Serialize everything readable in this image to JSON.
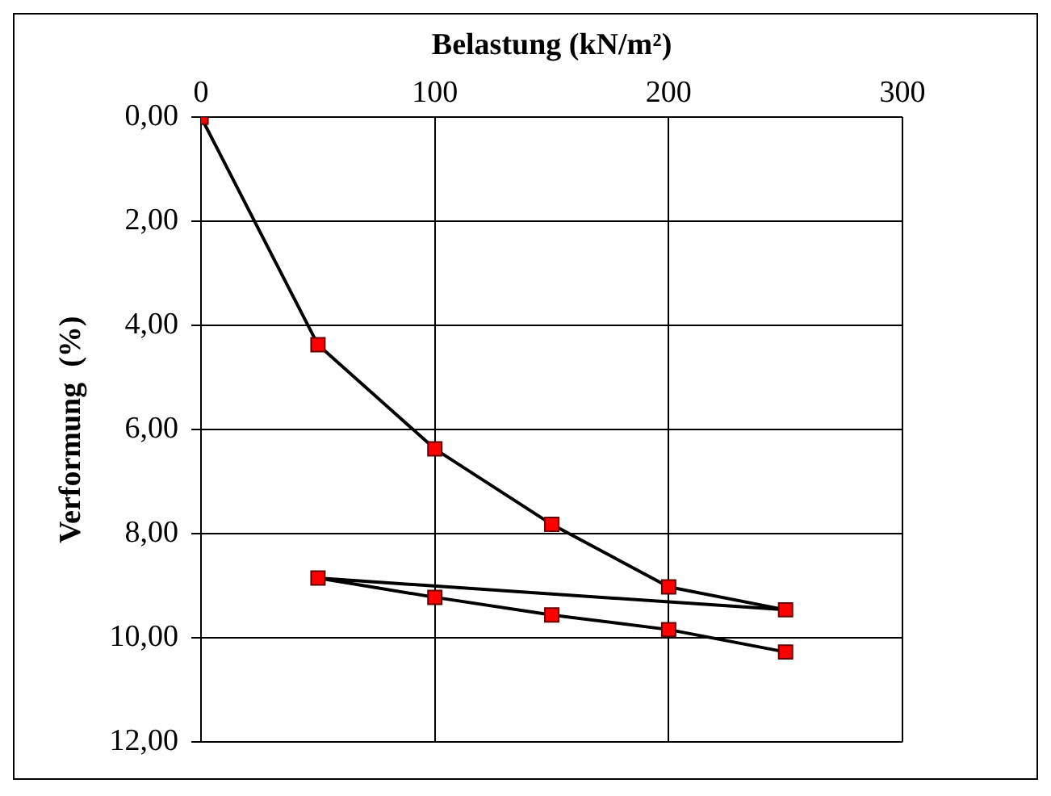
{
  "chart_data": {
    "type": "line",
    "xlabel": "Belastung (kN/m²)",
    "ylabel": "Verformung  (%)",
    "x": [
      0,
      50,
      100,
      150,
      200,
      250,
      50,
      100,
      150,
      200,
      250
    ],
    "series": [
      {
        "color": "#ff0000",
        "values": [
          0,
          4.37,
          6.37,
          7.82,
          9.02,
          9.46,
          8.85,
          9.22,
          9.56,
          9.84,
          10.27
        ]
      }
    ],
    "xlim": [
      0,
      300
    ],
    "xticks": [
      0,
      100,
      200,
      300
    ],
    "ylim": [
      12,
      0
    ],
    "yticks": [
      {
        "value": 0,
        "label": "0,00"
      },
      {
        "value": 2,
        "label": "2,00"
      },
      {
        "value": 4,
        "label": "4,00"
      },
      {
        "value": 6,
        "label": "6,00"
      },
      {
        "value": 8,
        "label": "8,00"
      },
      {
        "value": 10,
        "label": "10,00"
      },
      {
        "value": 12,
        "label": "12,00"
      }
    ],
    "grid": true,
    "legend": false,
    "marker": "square",
    "line_style": "solid"
  }
}
